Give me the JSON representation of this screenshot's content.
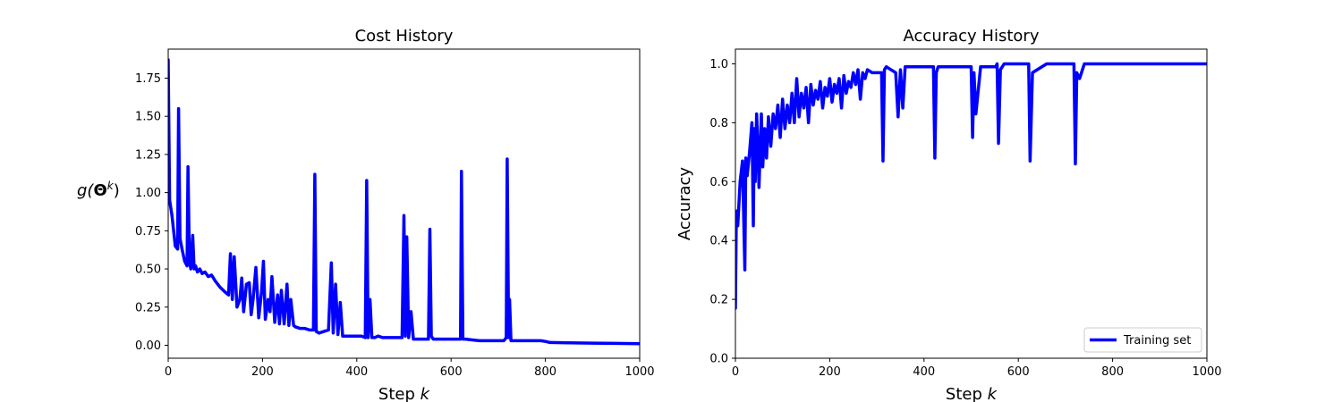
{
  "figure": {
    "background": "#ffffff",
    "line_color": "#0000ff"
  },
  "chart_data": [
    {
      "type": "line",
      "title": "Cost History",
      "xlabel_prefix": "Step ",
      "xlabel_var": "k",
      "ylabel_func": "g(",
      "ylabel_sym": "Θ",
      "ylabel_sup": "k",
      "ylabel_close": ")",
      "xlim": [
        0,
        1000
      ],
      "ylim": [
        -0.085,
        1.94
      ],
      "xticks": [
        0,
        200,
        400,
        600,
        800,
        1000
      ],
      "xtick_labels": [
        "0",
        "200",
        "400",
        "600",
        "800",
        "1000"
      ],
      "yticks": [
        0.0,
        0.25,
        0.5,
        0.75,
        1.0,
        1.25,
        1.5,
        1.75
      ],
      "ytick_labels": [
        "0.00",
        "0.25",
        "0.50",
        "0.75",
        "1.00",
        "1.25",
        "1.50",
        "1.75"
      ],
      "grid": false,
      "series": [
        {
          "color": "#0000ff",
          "x": [
            0,
            3,
            8,
            15,
            20,
            22,
            25,
            30,
            35,
            40,
            42,
            45,
            48,
            52,
            55,
            58,
            62,
            67,
            72,
            78,
            85,
            92,
            100,
            110,
            120,
            128,
            132,
            136,
            140,
            146,
            152,
            156,
            160,
            166,
            172,
            176,
            180,
            186,
            192,
            198,
            202,
            206,
            212,
            216,
            220,
            226,
            232,
            236,
            240,
            246,
            252,
            256,
            260,
            266,
            270,
            280,
            290,
            300,
            308,
            311,
            314,
            320,
            330,
            340,
            346,
            350,
            355,
            360,
            365,
            370,
            380,
            395,
            410,
            418,
            421,
            424,
            428,
            432,
            438,
            445,
            455,
            480,
            496,
            500,
            503,
            506,
            510,
            515,
            520,
            540,
            552,
            555,
            558,
            562,
            570,
            600,
            615,
            620,
            622,
            625,
            630,
            660,
            700,
            712,
            717,
            719,
            722,
            724,
            727,
            735,
            760,
            790,
            800,
            810,
            850,
            900,
            950,
            1000
          ],
          "y": [
            1.87,
            0.95,
            0.85,
            0.65,
            0.63,
            1.55,
            0.7,
            0.62,
            0.55,
            0.52,
            1.17,
            0.55,
            0.5,
            0.72,
            0.5,
            0.52,
            0.48,
            0.5,
            0.47,
            0.48,
            0.45,
            0.46,
            0.42,
            0.38,
            0.35,
            0.33,
            0.6,
            0.3,
            0.58,
            0.25,
            0.3,
            0.44,
            0.22,
            0.4,
            0.41,
            0.2,
            0.3,
            0.51,
            0.18,
            0.35,
            0.55,
            0.17,
            0.3,
            0.22,
            0.45,
            0.15,
            0.33,
            0.14,
            0.36,
            0.14,
            0.4,
            0.13,
            0.3,
            0.13,
            0.12,
            0.11,
            0.11,
            0.1,
            0.1,
            1.12,
            0.09,
            0.08,
            0.09,
            0.1,
            0.54,
            0.08,
            0.4,
            0.07,
            0.28,
            0.06,
            0.06,
            0.06,
            0.06,
            0.05,
            1.08,
            0.05,
            0.3,
            0.05,
            0.05,
            0.06,
            0.05,
            0.05,
            0.05,
            0.85,
            0.06,
            0.71,
            0.05,
            0.22,
            0.04,
            0.04,
            0.04,
            0.76,
            0.06,
            0.04,
            0.04,
            0.04,
            0.04,
            0.04,
            1.14,
            0.04,
            0.04,
            0.03,
            0.03,
            0.03,
            0.05,
            1.22,
            0.05,
            0.3,
            0.03,
            0.03,
            0.03,
            0.03,
            0.025,
            0.018,
            0.016,
            0.014,
            0.012,
            0.01
          ]
        }
      ]
    },
    {
      "type": "line",
      "title": "Accuracy History",
      "xlabel_prefix": "Step ",
      "xlabel_var": "k",
      "ylabel": "Accuracy",
      "xlim": [
        0,
        1000
      ],
      "ylim": [
        0.0,
        1.05
      ],
      "xticks": [
        0,
        200,
        400,
        600,
        800,
        1000
      ],
      "xtick_labels": [
        "0",
        "200",
        "400",
        "600",
        "800",
        "1000"
      ],
      "yticks": [
        0.0,
        0.2,
        0.4,
        0.6,
        0.8,
        1.0
      ],
      "ytick_labels": [
        "0.0",
        "0.2",
        "0.4",
        "0.6",
        "0.8",
        "1.0"
      ],
      "grid": false,
      "legend_position": "lower-right",
      "legend": [
        "Training set"
      ],
      "series": [
        {
          "name": "Training set",
          "color": "#0000ff",
          "x": [
            0,
            2,
            5,
            10,
            15,
            20,
            22,
            25,
            30,
            35,
            38,
            40,
            42,
            45,
            48,
            50,
            55,
            58,
            62,
            66,
            70,
            75,
            80,
            85,
            90,
            95,
            100,
            105,
            110,
            115,
            120,
            125,
            130,
            135,
            140,
            145,
            150,
            155,
            160,
            165,
            170,
            175,
            180,
            185,
            190,
            195,
            200,
            205,
            210,
            215,
            220,
            225,
            230,
            235,
            240,
            245,
            250,
            255,
            260,
            265,
            270,
            275,
            280,
            290,
            300,
            305,
            310,
            313,
            316,
            320,
            330,
            340,
            345,
            350,
            355,
            360,
            370,
            380,
            400,
            415,
            420,
            423,
            426,
            430,
            440,
            460,
            480,
            495,
            500,
            503,
            506,
            510,
            520,
            540,
            552,
            555,
            558,
            562,
            570,
            600,
            615,
            620,
            622,
            625,
            630,
            660,
            700,
            715,
            718,
            721,
            724,
            730,
            740,
            760,
            800,
            850,
            900,
            950,
            1000
          ],
          "y": [
            0.17,
            0.5,
            0.45,
            0.6,
            0.67,
            0.3,
            0.68,
            0.62,
            0.7,
            0.8,
            0.45,
            0.78,
            0.6,
            0.83,
            0.7,
            0.58,
            0.83,
            0.65,
            0.78,
            0.68,
            0.82,
            0.72,
            0.83,
            0.78,
            0.86,
            0.75,
            0.88,
            0.78,
            0.86,
            0.8,
            0.9,
            0.8,
            0.95,
            0.82,
            0.9,
            0.85,
            0.92,
            0.8,
            0.93,
            0.86,
            0.91,
            0.88,
            0.94,
            0.85,
            0.92,
            0.89,
            0.95,
            0.87,
            0.93,
            0.9,
            0.95,
            0.85,
            0.96,
            0.9,
            0.94,
            0.92,
            0.97,
            0.93,
            0.98,
            0.88,
            0.97,
            0.95,
            0.98,
            0.97,
            0.97,
            0.97,
            0.97,
            0.67,
            0.98,
            0.99,
            0.98,
            0.97,
            0.82,
            0.98,
            0.85,
            0.99,
            0.99,
            0.99,
            0.99,
            0.99,
            0.99,
            0.68,
            0.97,
            0.99,
            0.99,
            0.99,
            0.99,
            0.99,
            0.99,
            0.75,
            0.97,
            0.83,
            0.99,
            0.99,
            0.99,
            1.0,
            0.73,
            0.98,
            1.0,
            1.0,
            1.0,
            1.0,
            1.0,
            0.67,
            0.97,
            1.0,
            1.0,
            1.0,
            1.0,
            0.66,
            0.97,
            0.95,
            1.0,
            1.0,
            1.0,
            1.0,
            1.0,
            1.0,
            1.0
          ]
        }
      ]
    }
  ]
}
